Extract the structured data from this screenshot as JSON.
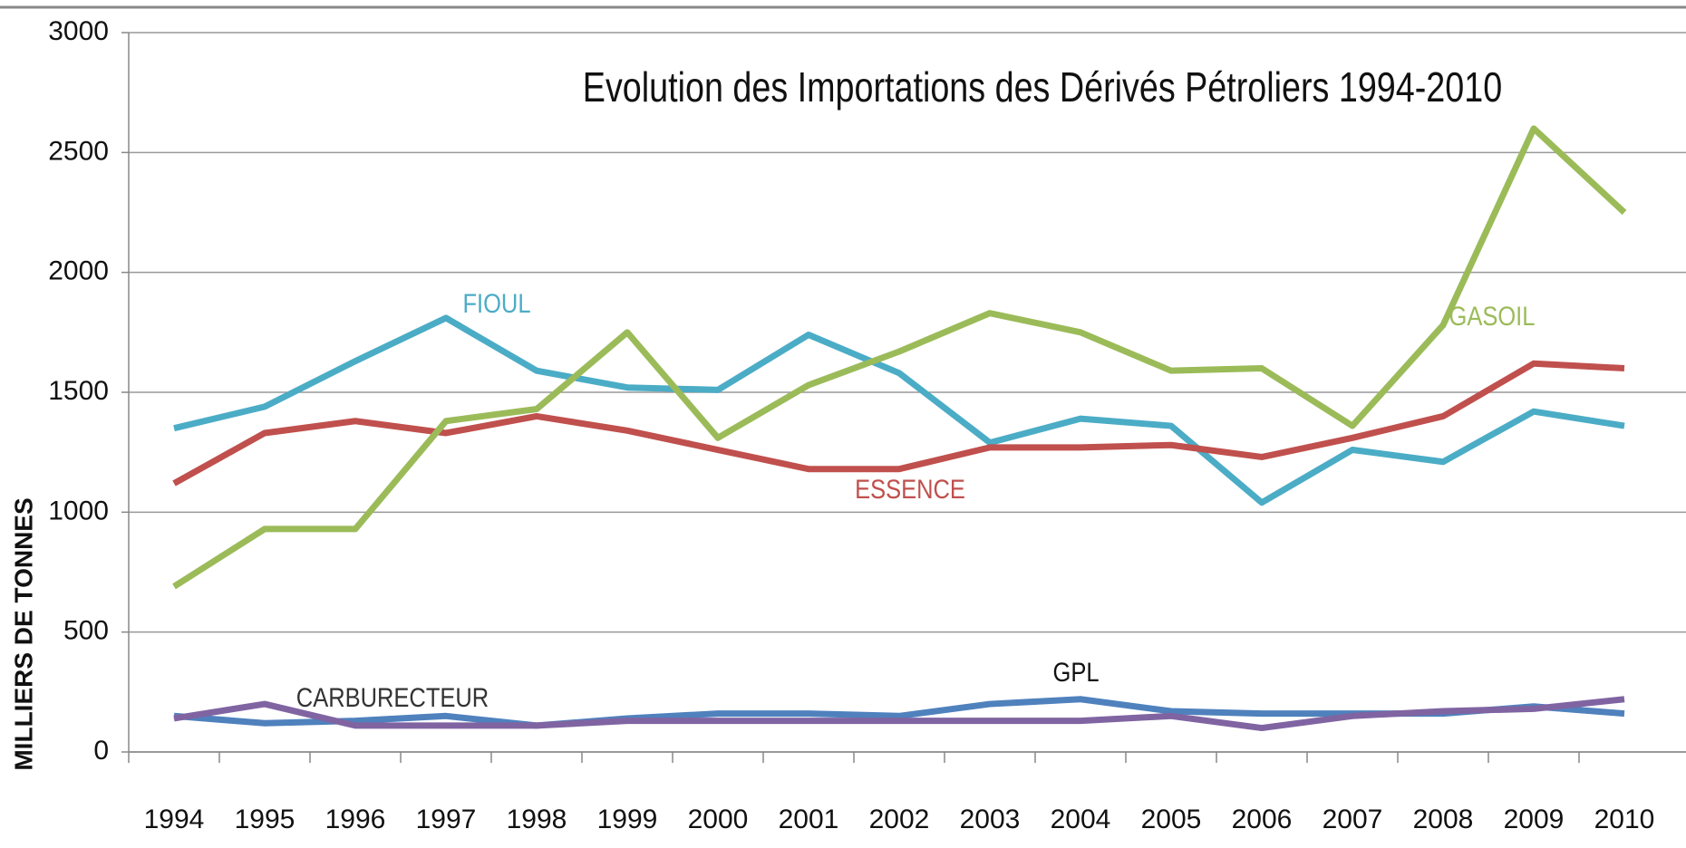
{
  "chart_data": {
    "type": "line",
    "title": "Evolution des Importations des Dérivés Pétroliers 1994-2010",
    "y_label": "MILLIERS DE TONNES",
    "categories": [
      "1994",
      "1995",
      "1996",
      "1997",
      "1998",
      "1999",
      "2000",
      "2001",
      "2002",
      "2003",
      "2004",
      "2005",
      "2006",
      "2007",
      "2008",
      "2009",
      "2010"
    ],
    "series": [
      {
        "name": "FIOUL",
        "color": "#4bacc6",
        "values": [
          1350,
          1440,
          1630,
          1810,
          1590,
          1520,
          1510,
          1740,
          1580,
          1290,
          1390,
          1360,
          1040,
          1260,
          1210,
          1420,
          1360
        ]
      },
      {
        "name": "ESSENCE",
        "color": "#c0504d",
        "values": [
          1120,
          1330,
          1380,
          1330,
          1400,
          1340,
          1260,
          1180,
          1180,
          1270,
          1270,
          1280,
          1230,
          1310,
          1400,
          1620,
          1600
        ]
      },
      {
        "name": "GASOIL",
        "color": "#9bbb59",
        "values": [
          690,
          930,
          930,
          1380,
          1430,
          1750,
          1310,
          1530,
          1670,
          1830,
          1750,
          1590,
          1600,
          1360,
          1780,
          2600,
          2250
        ]
      },
      {
        "name": "GPL",
        "color": "#4f81bd",
        "values": [
          150,
          120,
          130,
          150,
          110,
          140,
          160,
          160,
          150,
          200,
          220,
          170,
          160,
          160,
          160,
          190,
          160
        ]
      },
      {
        "name": "CARBURECTEUR",
        "color": "#8064a2",
        "values": [
          140,
          200,
          110,
          110,
          110,
          130,
          130,
          130,
          130,
          130,
          130,
          150,
          100,
          150,
          170,
          180,
          220
        ]
      }
    ],
    "ylim": [
      0,
      3000
    ],
    "yticks": [
      0,
      500,
      1000,
      1500,
      2000,
      2500,
      3000
    ],
    "grid": true
  }
}
